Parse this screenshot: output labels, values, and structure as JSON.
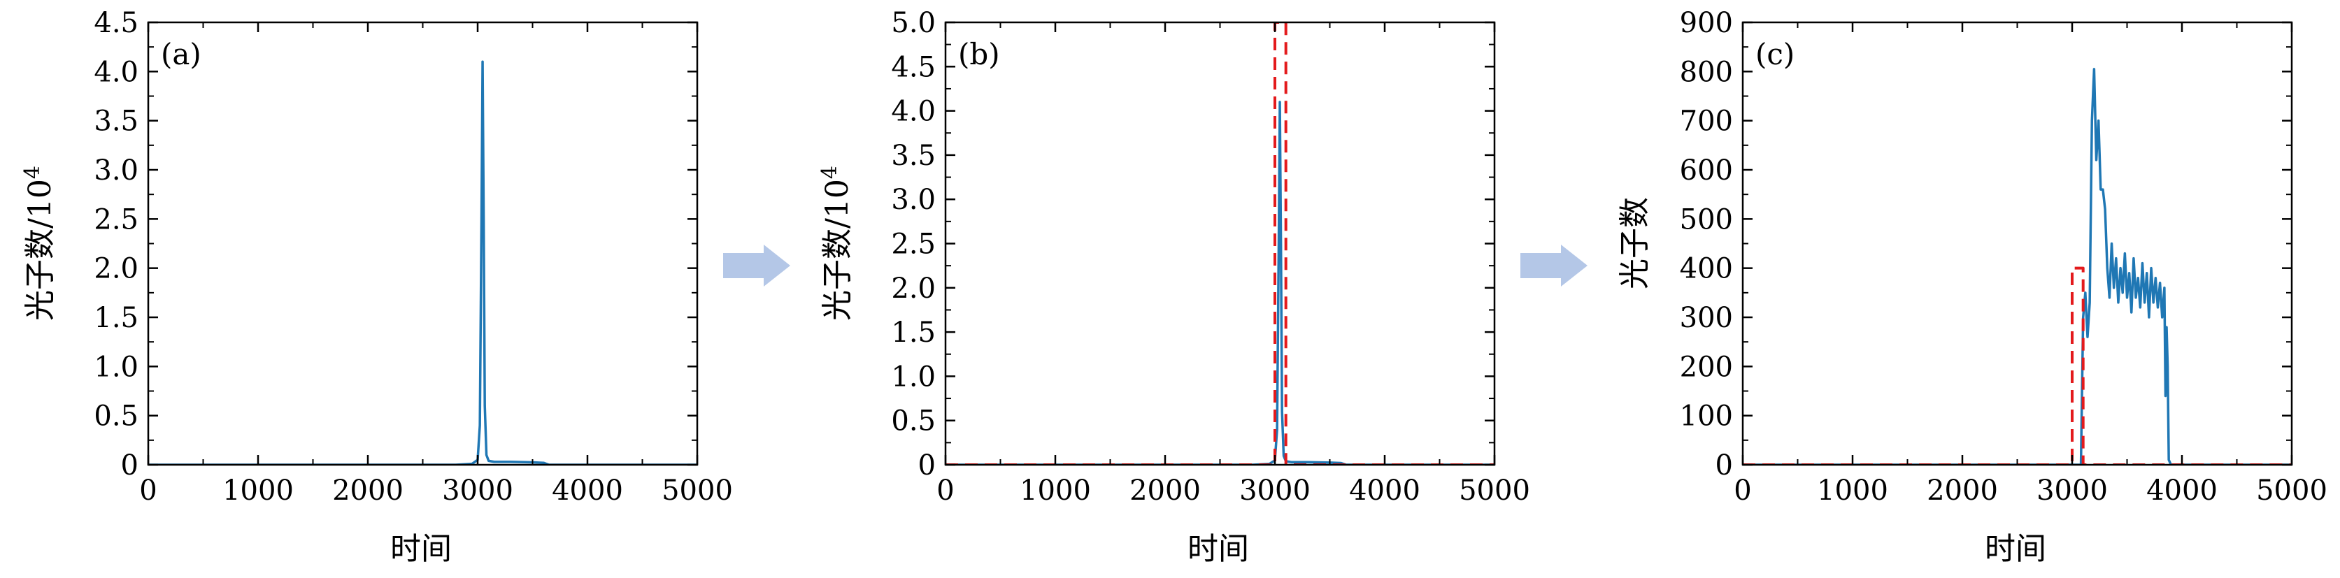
{
  "colors": {
    "series_solid": "#1f77b4",
    "series_dashed": "#e31a1c",
    "arrow": "#b4c7e7",
    "axis": "#000000",
    "background": "#ffffff"
  },
  "arrows": [
    "right-arrow-icon",
    "right-arrow-icon"
  ],
  "chart_data": [
    {
      "type": "line",
      "panel_label": "(a)",
      "xlabel": "时间",
      "ylabel": "光子数/10",
      "ylabel_superscript": "4",
      "xlim": [
        0,
        5000
      ],
      "ylim": [
        0,
        4.5
      ],
      "xticks": [
        "0",
        "1000",
        "2000",
        "3000",
        "4000",
        "5000"
      ],
      "yticks": [
        "0",
        "0.5",
        "1.0",
        "1.5",
        "2.0",
        "2.5",
        "3.0",
        "3.5",
        "4.0",
        "4.5"
      ],
      "grid": false,
      "series": [
        {
          "style": "solid",
          "x": [
            0,
            2800,
            2950,
            3000,
            3020,
            3035,
            3045,
            3055,
            3065,
            3080,
            3100,
            3150,
            3300,
            3500,
            3600,
            3650,
            5000
          ],
          "y": [
            0,
            0,
            0.01,
            0.05,
            0.4,
            2.5,
            4.1,
            2.5,
            0.6,
            0.1,
            0.04,
            0.03,
            0.03,
            0.025,
            0.02,
            0,
            0
          ]
        }
      ]
    },
    {
      "type": "line",
      "panel_label": "(b)",
      "xlabel": "时间",
      "ylabel": "光子数/10",
      "ylabel_superscript": "4",
      "xlim": [
        0,
        5000
      ],
      "ylim": [
        0,
        5.0
      ],
      "xticks": [
        "0",
        "1000",
        "2000",
        "3000",
        "4000",
        "5000"
      ],
      "yticks": [
        "0",
        "0.5",
        "1.0",
        "1.5",
        "2.0",
        "2.5",
        "3.0",
        "3.5",
        "4.0",
        "4.5",
        "5.0"
      ],
      "grid": false,
      "series": [
        {
          "style": "solid",
          "x": [
            0,
            2800,
            2950,
            3000,
            3020,
            3035,
            3045,
            3055,
            3065,
            3080,
            3100,
            3150,
            3300,
            3500,
            3600,
            3650,
            5000
          ],
          "y": [
            0,
            0,
            0.01,
            0.05,
            0.4,
            2.5,
            4.1,
            2.5,
            0.6,
            0.1,
            0.04,
            0.03,
            0.03,
            0.025,
            0.02,
            0,
            0
          ]
        },
        {
          "style": "dashed",
          "x": [
            0,
            3000,
            3000,
            3100,
            3100,
            5000
          ],
          "y": [
            0,
            0,
            5.0,
            5.0,
            0,
            0
          ]
        }
      ]
    },
    {
      "type": "line",
      "panel_label": "(c)",
      "xlabel": "时间",
      "ylabel": "光子数",
      "ylabel_superscript": "",
      "xlim": [
        0,
        5000
      ],
      "ylim": [
        0,
        900
      ],
      "xticks": [
        "0",
        "1000",
        "2000",
        "3000",
        "4000",
        "5000"
      ],
      "yticks": [
        "0",
        "100",
        "200",
        "300",
        "400",
        "500",
        "600",
        "700",
        "800",
        "900"
      ],
      "grid": false,
      "series": [
        {
          "style": "solid",
          "x": [
            0,
            3080,
            3100,
            3120,
            3140,
            3160,
            3180,
            3200,
            3220,
            3240,
            3260,
            3280,
            3300,
            3320,
            3340,
            3360,
            3380,
            3400,
            3420,
            3440,
            3460,
            3480,
            3500,
            3520,
            3540,
            3560,
            3580,
            3600,
            3620,
            3640,
            3660,
            3680,
            3700,
            3720,
            3740,
            3760,
            3780,
            3800,
            3820,
            3840,
            3850,
            3860,
            3870,
            3880,
            3900,
            5000
          ],
          "y": [
            0,
            0,
            300,
            350,
            260,
            330,
            700,
            805,
            620,
            700,
            560,
            560,
            520,
            400,
            340,
            450,
            360,
            420,
            330,
            400,
            350,
            430,
            340,
            390,
            310,
            420,
            340,
            380,
            320,
            410,
            330,
            390,
            300,
            400,
            330,
            380,
            320,
            370,
            300,
            360,
            140,
            280,
            200,
            10,
            0,
            0
          ]
        },
        {
          "style": "dashed",
          "x": [
            0,
            3000,
            3000,
            3100,
            3100,
            5000
          ],
          "y": [
            0,
            0,
            400,
            400,
            0,
            0
          ]
        }
      ]
    }
  ]
}
